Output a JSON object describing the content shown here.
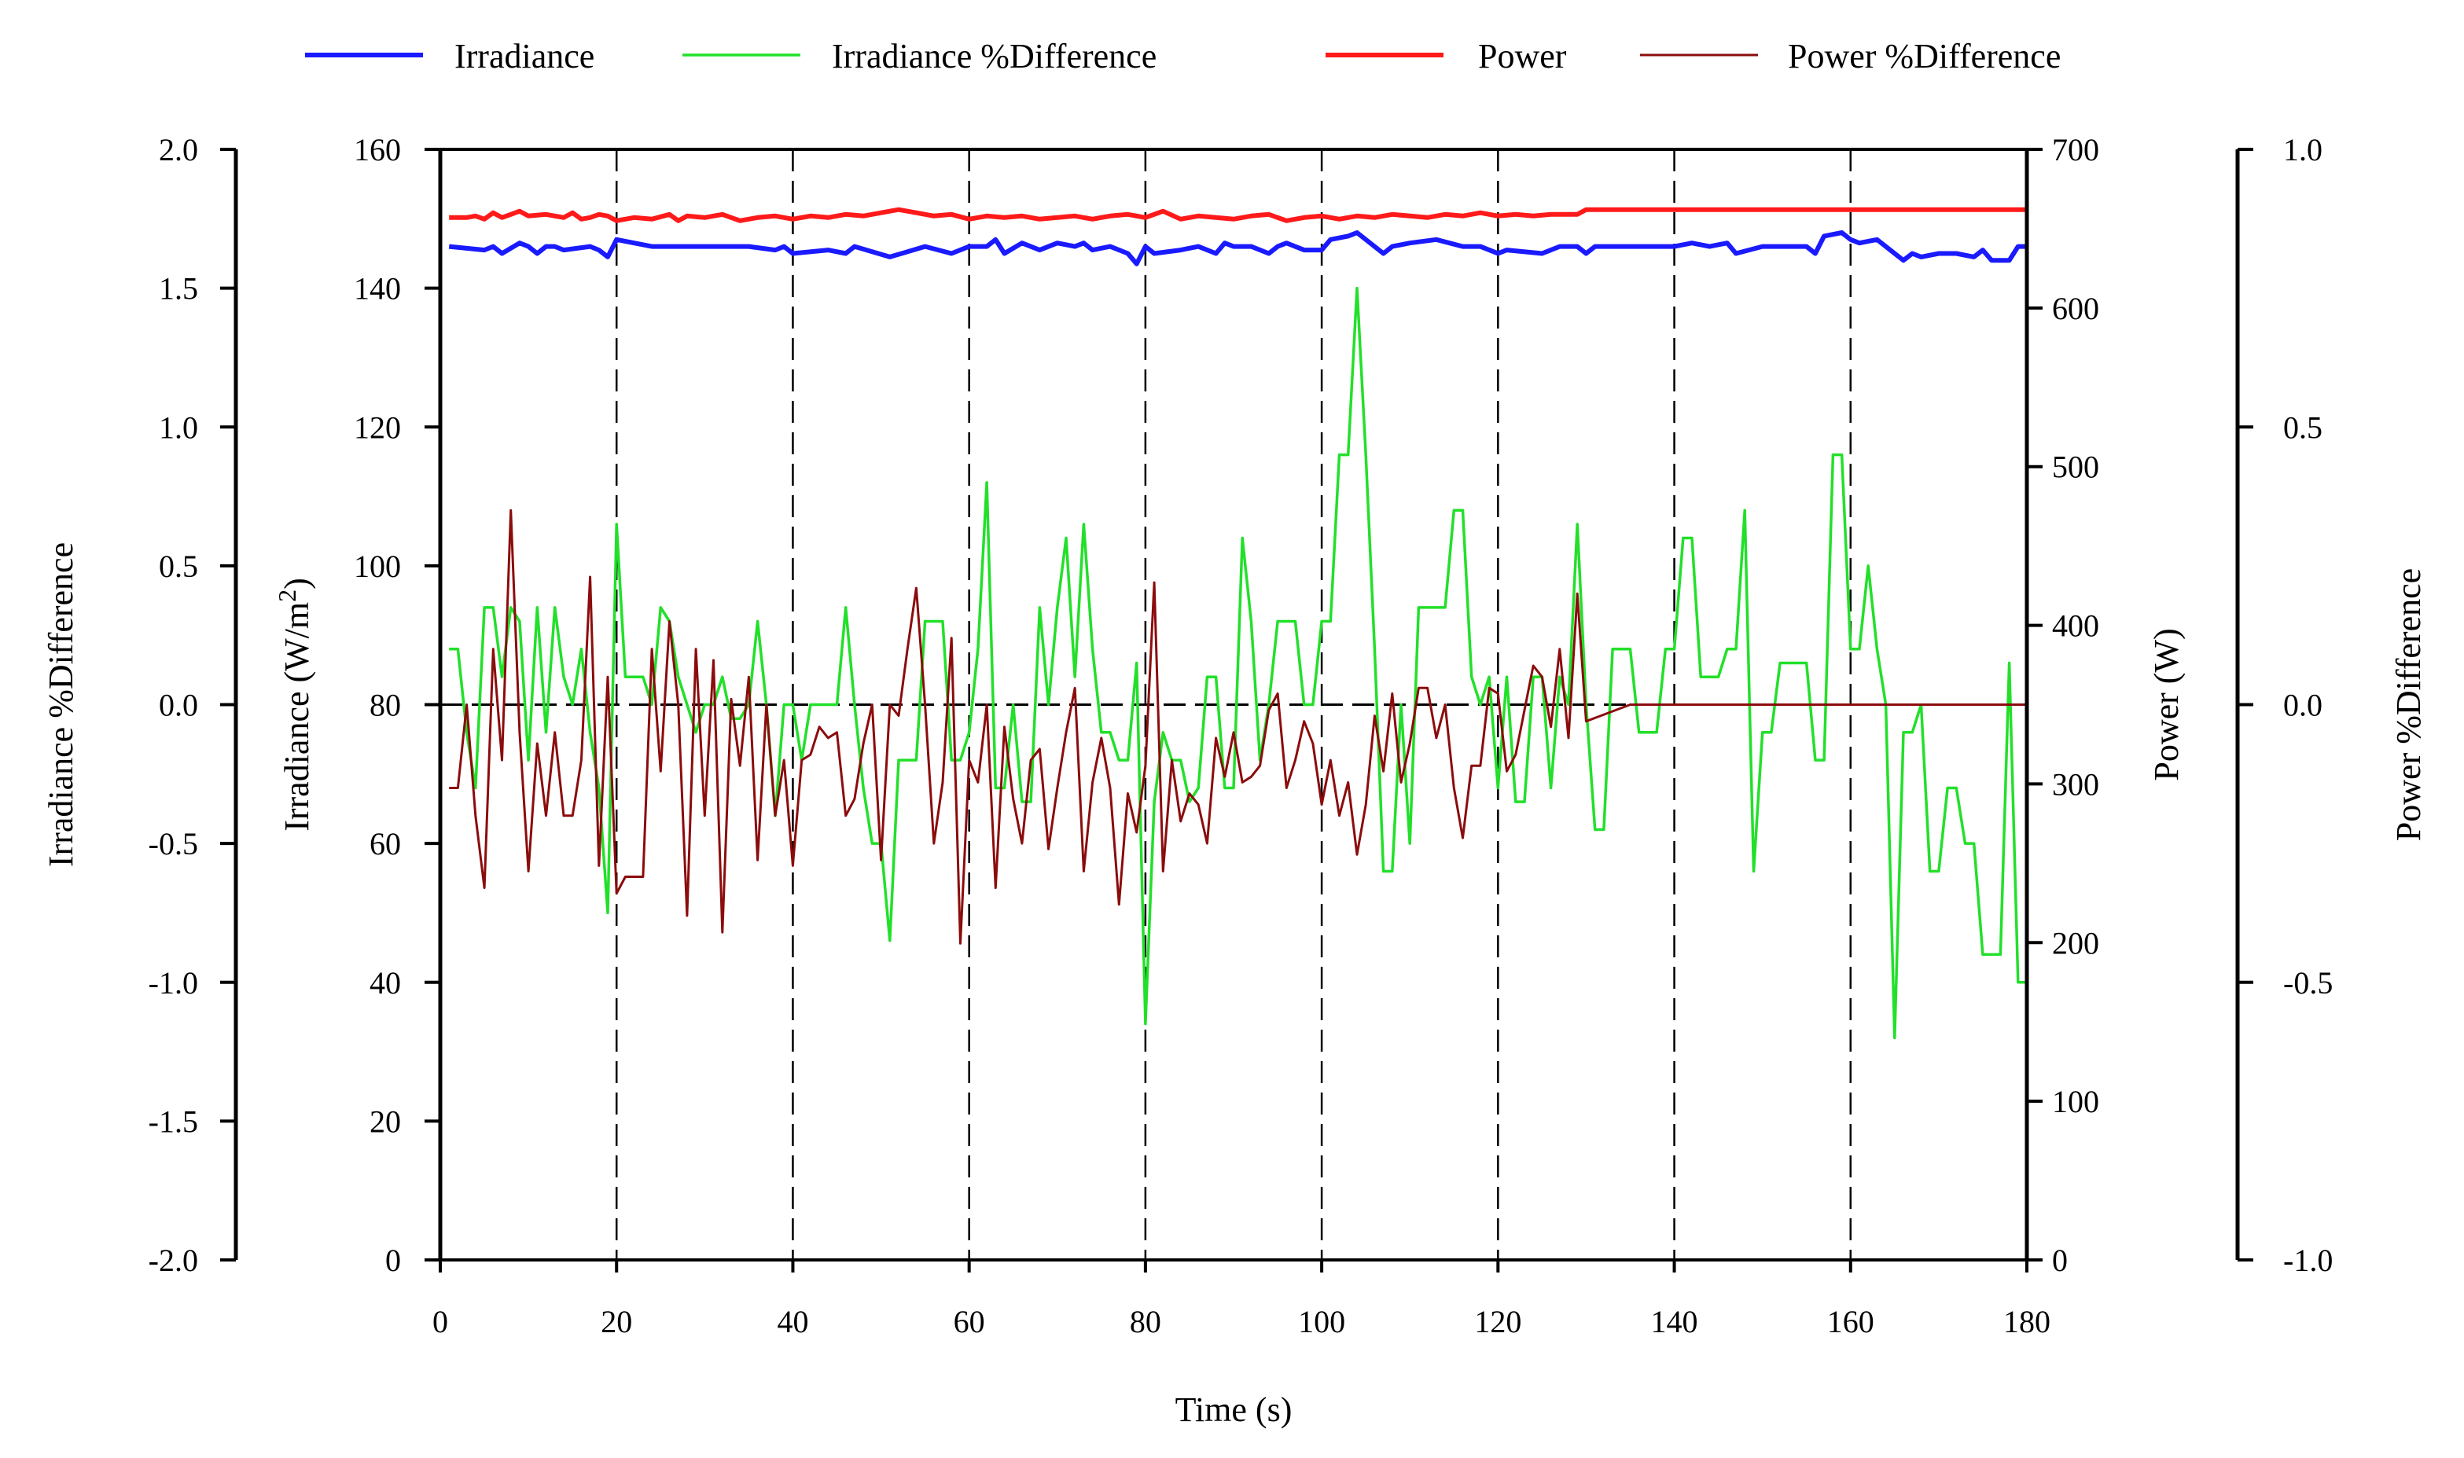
{
  "chart_data": {
    "type": "line",
    "title": "",
    "xlabel": "Time (s)",
    "xlim": [
      0,
      180
    ],
    "x_ticks": [
      "0",
      "20",
      "40",
      "60",
      "80",
      "100",
      "120",
      "140",
      "160",
      "180"
    ],
    "grid": "vertical dashed lines at x = 20, 40, ..., 160; dashed horizontal zero line",
    "legend_position": "top",
    "axes": {
      "irr_pct": {
        "label": "Irradiance %Difference",
        "side": "left-outer",
        "ylim": [
          -2.0,
          2.0
        ],
        "ticks": [
          "2.0",
          "1.5",
          "1.0",
          "0.5",
          "0.0",
          "-0.5",
          "-1.0",
          "-1.5",
          "-2.0"
        ]
      },
      "irr": {
        "label": "Irradiance (W/m",
        "label_sup": "2",
        "label_tail": ")",
        "side": "left-inner",
        "ylim": [
          0,
          160
        ],
        "ticks": [
          "160",
          "140",
          "120",
          "100",
          "80",
          "60",
          "40",
          "20",
          "0"
        ]
      },
      "power": {
        "label": "Power (W)",
        "side": "right-inner",
        "ylim": [
          0,
          700
        ],
        "ticks": [
          "700",
          "600",
          "500",
          "400",
          "300",
          "200",
          "100",
          "0"
        ]
      },
      "power_pct": {
        "label": "Power %Difference",
        "side": "right-outer",
        "ylim": [
          -1.0,
          1.0
        ],
        "ticks": [
          "1.0",
          "0.5",
          "0.0",
          "-0.5",
          "-1.0"
        ]
      }
    },
    "series": [
      {
        "name": "Irradiance",
        "axis": "irr",
        "color": "#1a1aff",
        "width": 6,
        "x": [
          1,
          5,
          6,
          7,
          9,
          10,
          11,
          12,
          13,
          14,
          17,
          18,
          19,
          20,
          24,
          26,
          30,
          35,
          38,
          39,
          40,
          44,
          46,
          47,
          51,
          55,
          58,
          60,
          62,
          63,
          64,
          66,
          68,
          70,
          72,
          73,
          74,
          76,
          78,
          79,
          80,
          81,
          84,
          86,
          88,
          89,
          90,
          92,
          94,
          95,
          96,
          98,
          100,
          101,
          103,
          104,
          105,
          107,
          108,
          110,
          113,
          116,
          118,
          120,
          121,
          125,
          126,
          127,
          129,
          130,
          131,
          133,
          135,
          138,
          140,
          142,
          144,
          146,
          147,
          150,
          155,
          156,
          157,
          159,
          160,
          161,
          163,
          164,
          166,
          167,
          168,
          170,
          172,
          174,
          175,
          176,
          178,
          179,
          180
        ],
        "y": [
          146,
          145.5,
          146,
          145,
          146.5,
          146,
          145,
          146,
          146,
          145.5,
          146,
          145.5,
          144.5,
          147,
          146,
          146,
          146,
          146,
          145.5,
          146,
          145,
          145.5,
          145,
          146,
          144.5,
          146,
          145,
          146,
          146,
          147,
          145,
          146.5,
          145.5,
          146.5,
          146,
          146.5,
          145.5,
          146,
          145,
          143.5,
          146,
          145,
          145.5,
          146,
          145,
          146.5,
          146,
          146,
          145,
          146,
          146.5,
          145.5,
          145.5,
          147,
          147.5,
          148,
          147,
          145,
          146,
          146.5,
          147,
          146,
          146,
          145,
          145.5,
          145,
          145.5,
          146,
          146,
          145,
          146,
          146,
          146,
          146,
          146,
          146.5,
          146,
          146.5,
          145,
          146,
          146,
          145,
          147.5,
          148,
          147,
          146.5,
          147,
          146,
          144,
          145,
          144.5,
          145,
          145,
          144.5,
          145.5,
          144,
          144,
          146,
          146
        ]
      },
      {
        "name": "Irradiance %Difference",
        "axis": "irr_pct",
        "color": "#22e02a",
        "width": 3.5,
        "x": [
          1,
          2,
          3,
          4,
          5,
          6,
          7,
          8,
          9,
          10,
          11,
          12,
          13,
          14,
          15,
          16,
          17,
          18,
          19,
          20,
          21,
          22,
          23,
          24,
          25,
          26,
          27,
          28,
          29,
          30,
          31,
          32,
          33,
          34,
          35,
          36,
          37,
          38,
          39,
          40,
          41,
          42,
          43,
          44,
          45,
          46,
          47,
          48,
          49,
          50,
          51,
          52,
          53,
          54,
          55,
          56,
          57,
          58,
          59,
          60,
          61,
          62,
          63,
          64,
          65,
          66,
          67,
          68,
          69,
          70,
          71,
          72,
          73,
          74,
          75,
          76,
          77,
          78,
          79,
          80,
          81,
          82,
          83,
          84,
          85,
          86,
          87,
          88,
          89,
          90,
          91,
          92,
          93,
          94,
          95,
          96,
          97,
          98,
          99,
          100,
          101,
          102,
          103,
          104,
          105,
          106,
          107,
          108,
          109,
          110,
          111,
          112,
          113,
          114,
          115,
          116,
          117,
          118,
          119,
          120,
          121,
          122,
          123,
          124,
          125,
          126,
          127,
          128,
          129,
          130,
          131,
          132,
          133,
          134,
          135,
          136,
          137,
          138,
          139,
          140,
          141,
          142,
          143,
          144,
          145,
          146,
          147,
          148,
          149,
          150,
          151,
          152,
          153,
          154,
          155,
          156,
          157,
          158,
          159,
          160,
          161,
          162,
          163,
          164,
          165,
          166,
          167,
          168,
          169,
          170,
          171,
          172,
          173,
          174,
          175,
          176,
          177,
          178,
          179,
          180
        ],
        "y": [
          0.2,
          0.2,
          -0.1,
          -0.3,
          0.35,
          0.35,
          0.1,
          0.35,
          0.3,
          -0.2,
          0.35,
          -0.1,
          0.35,
          0.1,
          0,
          0.2,
          -0.1,
          -0.3,
          -0.75,
          0.65,
          0.1,
          0.1,
          0.1,
          0,
          0.35,
          0.3,
          0.1,
          0,
          -0.1,
          0,
          0,
          0.1,
          -0.05,
          -0.05,
          0,
          0.3,
          0,
          -0.4,
          0,
          0,
          -0.2,
          0,
          0,
          0,
          0,
          0.35,
          0,
          -0.3,
          -0.5,
          -0.5,
          -0.85,
          -0.2,
          -0.2,
          -0.2,
          0.3,
          0.3,
          0.3,
          -0.2,
          -0.2,
          -0.1,
          0.2,
          0.8,
          -0.3,
          -0.3,
          0,
          -0.35,
          -0.35,
          0.35,
          0,
          0.35,
          0.6,
          0.1,
          0.65,
          0.2,
          -0.1,
          -0.1,
          -0.2,
          -0.2,
          0.15,
          -1.15,
          -0.35,
          -0.1,
          -0.2,
          -0.2,
          -0.35,
          -0.3,
          0.1,
          0.1,
          -0.3,
          -0.3,
          0.6,
          0.3,
          -0.2,
          0,
          0.3,
          0.3,
          0.3,
          0,
          0,
          0.3,
          0.3,
          0.9,
          0.9,
          1.5,
          0.9,
          0.2,
          -0.6,
          -0.6,
          0,
          -0.5,
          0.35,
          0.35,
          0.35,
          0.35,
          0.7,
          0.7,
          0.1,
          0,
          0.1,
          -0.3,
          0.1,
          -0.35,
          -0.35,
          0.1,
          0.1,
          -0.3,
          0.1,
          0,
          0.65,
          0,
          -0.45,
          -0.45,
          0.2,
          0.2,
          0.2,
          -0.1,
          -0.1,
          -0.1,
          0.2,
          0.2,
          0.6,
          0.6,
          0.1,
          0.1,
          0.1,
          0.2,
          0.2,
          0.7,
          -0.6,
          -0.1,
          -0.1,
          0.15,
          0.15,
          0.15,
          0.15,
          -0.2,
          -0.2,
          0.9,
          0.9,
          0.2,
          0.2,
          0.5,
          0.2,
          0,
          -1.2,
          -0.1,
          -0.1,
          0,
          -0.6,
          -0.6,
          -0.3,
          -0.3,
          -0.5,
          -0.5,
          -0.9,
          -0.9,
          -0.9,
          0.15,
          -1.0,
          -1.0
        ]
      },
      {
        "name": "Power",
        "axis": "power",
        "color": "#ff1a1a",
        "width": 6,
        "x": [
          1,
          3,
          4,
          5,
          6,
          7,
          8,
          9,
          10,
          12,
          14,
          15,
          16,
          17,
          18,
          19,
          20,
          22,
          24,
          26,
          27,
          28,
          30,
          32,
          34,
          36,
          38,
          40,
          42,
          44,
          46,
          48,
          50,
          52,
          54,
          56,
          58,
          60,
          62,
          64,
          66,
          68,
          70,
          72,
          74,
          76,
          78,
          80,
          82,
          84,
          86,
          88,
          90,
          92,
          94,
          96,
          98,
          100,
          102,
          104,
          106,
          108,
          110,
          112,
          114,
          116,
          118,
          120,
          122,
          124,
          126,
          128,
          129,
          130,
          135,
          140,
          145,
          150,
          155,
          160,
          165,
          170,
          175,
          180
        ],
        "y": [
          657,
          657,
          658,
          656,
          660,
          657,
          659,
          661,
          658,
          659,
          657,
          660,
          656,
          657,
          659,
          658,
          655,
          657,
          656,
          659,
          655,
          658,
          657,
          659,
          655,
          657,
          658,
          656,
          658,
          657,
          659,
          658,
          660,
          662,
          660,
          658,
          659,
          656,
          658,
          657,
          658,
          656,
          657,
          658,
          656,
          658,
          659,
          657,
          661,
          656,
          658,
          657,
          656,
          658,
          659,
          655,
          657,
          658,
          656,
          658,
          657,
          659,
          658,
          657,
          659,
          658,
          660,
          658,
          659,
          658,
          659,
          659,
          659,
          662,
          662,
          662,
          662,
          662,
          662,
          662,
          662,
          662,
          662,
          662
        ]
      },
      {
        "name": "Power %Difference",
        "axis": "power_pct",
        "color": "#8b0c0c",
        "width": 3,
        "x": [
          1,
          2,
          3,
          4,
          5,
          6,
          7,
          8,
          9,
          10,
          11,
          12,
          13,
          14,
          15,
          16,
          17,
          18,
          19,
          20,
          21,
          22,
          23,
          24,
          25,
          26,
          27,
          28,
          29,
          30,
          31,
          32,
          33,
          34,
          35,
          36,
          37,
          38,
          39,
          40,
          41,
          42,
          43,
          44,
          45,
          46,
          47,
          48,
          49,
          50,
          51,
          52,
          53,
          54,
          55,
          56,
          57,
          58,
          59,
          60,
          61,
          62,
          63,
          64,
          65,
          66,
          67,
          68,
          69,
          70,
          71,
          72,
          73,
          74,
          75,
          76,
          77,
          78,
          79,
          80,
          81,
          82,
          83,
          84,
          85,
          86,
          87,
          88,
          89,
          90,
          91,
          92,
          93,
          94,
          95,
          96,
          97,
          98,
          99,
          100,
          101,
          102,
          103,
          104,
          105,
          106,
          107,
          108,
          109,
          110,
          111,
          112,
          113,
          114,
          115,
          116,
          117,
          118,
          119,
          120,
          121,
          122,
          123,
          124,
          125,
          126,
          127,
          128,
          129,
          130,
          135,
          140,
          145,
          150,
          155,
          160,
          165,
          170,
          175,
          180
        ],
        "y": [
          -0.15,
          -0.15,
          0,
          -0.2,
          -0.33,
          0.1,
          -0.1,
          0.35,
          -0.05,
          -0.3,
          -0.07,
          -0.2,
          -0.05,
          -0.2,
          -0.2,
          -0.1,
          0.23,
          -0.29,
          0.05,
          -0.34,
          -0.31,
          -0.31,
          -0.31,
          0.1,
          -0.12,
          0.15,
          0,
          -0.38,
          0.1,
          -0.2,
          0.08,
          -0.41,
          0.01,
          -0.11,
          0.05,
          -0.28,
          0,
          -0.2,
          -0.1,
          -0.29,
          -0.1,
          -0.09,
          -0.04,
          -0.06,
          -0.05,
          -0.2,
          -0.17,
          -0.07,
          0,
          -0.28,
          0,
          -0.02,
          0.1,
          0.21,
          0,
          -0.25,
          -0.14,
          0.12,
          -0.43,
          -0.1,
          -0.14,
          0,
          -0.33,
          -0.04,
          -0.17,
          -0.25,
          -0.1,
          -0.08,
          -0.26,
          -0.15,
          -0.05,
          0.03,
          -0.3,
          -0.14,
          -0.06,
          -0.15,
          -0.36,
          -0.16,
          -0.23,
          -0.11,
          0.22,
          -0.3,
          -0.1,
          -0.21,
          -0.16,
          -0.18,
          -0.25,
          -0.06,
          -0.13,
          -0.05,
          -0.14,
          -0.13,
          -0.11,
          -0.01,
          0.02,
          -0.15,
          -0.1,
          -0.03,
          -0.07,
          -0.18,
          -0.1,
          -0.2,
          -0.14,
          -0.27,
          -0.18,
          -0.02,
          -0.12,
          0.02,
          -0.14,
          -0.07,
          0.03,
          0.03,
          -0.06,
          0,
          -0.15,
          -0.24,
          -0.11,
          -0.11,
          0.03,
          0.02,
          -0.12,
          -0.09,
          -0.01,
          0.07,
          0.05,
          -0.04,
          0.1,
          -0.06,
          0.2,
          -0.03,
          0,
          0,
          0,
          0,
          0,
          0,
          0,
          0,
          0,
          0
        ]
      }
    ]
  }
}
